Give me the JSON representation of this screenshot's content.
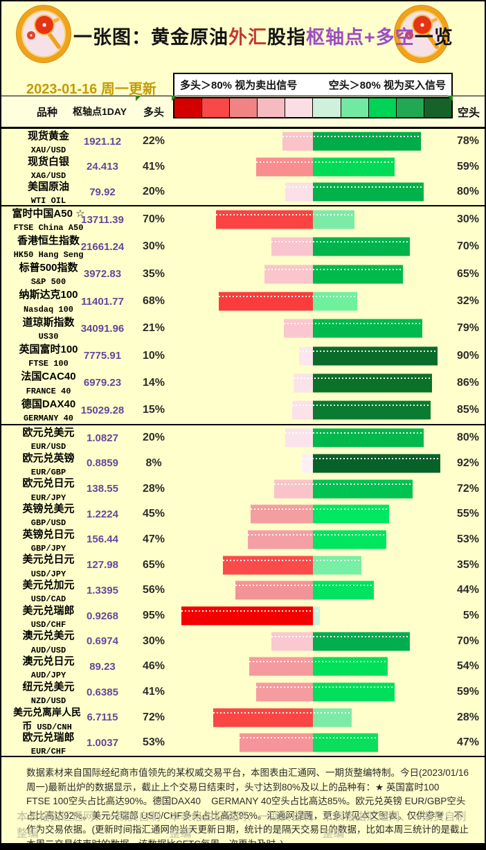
{
  "header": {
    "title_parts": [
      {
        "text": "一张图：黄金原油",
        "color": "#141414"
      },
      {
        "text": "外汇",
        "color": "#C23B30"
      },
      {
        "text": "股指",
        "color": "#141414"
      },
      {
        "text": "枢轴点+多空",
        "color": "#9C4EC4"
      },
      {
        "text": "一览",
        "color": "#141414"
      }
    ],
    "date": "2023-01-16 周一更新",
    "legend_left": "多头＞80% 视为卖出信号",
    "legend_right": "空头＞80% 视为买入信号",
    "scale_colors": [
      "#D40000",
      "#F84848",
      "#F08484",
      "#F6BBC1",
      "#FBDEE3",
      "#CFF0DB",
      "#72E9A2",
      "#00D456",
      "#21A853",
      "#156329"
    ]
  },
  "columns": {
    "name": "品种",
    "pivot": "枢轴点1DAY",
    "bull": "多头",
    "bear": "空头"
  },
  "groups": [
    {
      "id": "commodities",
      "rows": [
        {
          "name": "现货黄金",
          "code": "XAU/USD",
          "pivot": "1921.12",
          "bull": 22,
          "bear": 78,
          "bull_color": "#FAC3CA",
          "bear_color": "#00AC49"
        },
        {
          "name": "现货白银",
          "code": "XAG/USD",
          "pivot": "24.413",
          "bull": 41,
          "bear": 59,
          "bull_color": "#F98D90",
          "bear_color": "#00DC58"
        },
        {
          "name": "美国原油",
          "code": "WTI OIL",
          "pivot": "79.92",
          "bull": 20,
          "bear": 80,
          "bull_color": "#FBE0E7",
          "bear_color": "#00B249"
        }
      ]
    },
    {
      "id": "indices",
      "rows": [
        {
          "name": "富时中国A50 ☆",
          "code": "FTSE China A50",
          "pivot": "13711.39",
          "bull": 70,
          "bear": 30,
          "bull_color": "#FA4343",
          "bear_color": "#7CEBA5"
        },
        {
          "name": "香港恒生指数",
          "code": "HK50 Hang Seng",
          "pivot": "21661.24",
          "bull": 30,
          "bear": 70,
          "bull_color": "#F9C5CD",
          "bear_color": "#00B44C"
        },
        {
          "name": "标普500指数",
          "code": "S&P 500",
          "pivot": "3972.83",
          "bull": 35,
          "bear": 65,
          "bull_color": "#FAC5CB",
          "bear_color": "#00BA4B"
        },
        {
          "name": "纳斯达克100",
          "code": "Nasdaq 100",
          "pivot": "11401.77",
          "bull": 68,
          "bear": 32,
          "bull_color": "#FA3C3C",
          "bear_color": "#6FF09D"
        },
        {
          "name": "道琼斯指数",
          "code": "US30",
          "pivot": "34091.96",
          "bull": 21,
          "bear": 79,
          "bull_color": "#FBC7CF",
          "bear_color": "#00BA4D"
        },
        {
          "name": "英国富时100",
          "code": "FTSE 100",
          "pivot": "7775.91",
          "bull": 10,
          "bear": 90,
          "bull_color": "#FBE7ED",
          "bear_color": "#096C2B"
        },
        {
          "name": "法国CAC40",
          "code": "FRANCE 40",
          "pivot": "6979.23",
          "bull": 14,
          "bear": 86,
          "bull_color": "#FBE3EA",
          "bear_color": "#0B7129"
        },
        {
          "name": "德国DAX40",
          "code": "GERMANY 40",
          "pivot": "15029.28",
          "bull": 15,
          "bear": 85,
          "bull_color": "#FBE1E8",
          "bear_color": "#0A7B30"
        }
      ]
    },
    {
      "id": "forex",
      "rows": [
        {
          "name": "欧元兑美元",
          "code": "EUR/USD",
          "pivot": "1.0827",
          "bull": 20,
          "bear": 80,
          "bull_color": "#FBE3EB",
          "bear_color": "#00B84C"
        },
        {
          "name": "欧元兑英镑",
          "code": "EUR/GBP",
          "pivot": "0.8859",
          "bull": 8,
          "bear": 92,
          "bull_color": "#FDEFF4",
          "bear_color": "#07622A"
        },
        {
          "name": "欧元兑日元",
          "code": "EUR/JPY",
          "pivot": "138.55",
          "bull": 28,
          "bear": 72,
          "bull_color": "#FAC3CA",
          "bear_color": "#00C351"
        },
        {
          "name": "英镑兑美元",
          "code": "GBP/USD",
          "pivot": "1.2224",
          "bull": 45,
          "bear": 55,
          "bull_color": "#F39EA1",
          "bear_color": "#00E862"
        },
        {
          "name": "英镑兑日元",
          "code": "GBP/JPY",
          "pivot": "156.44",
          "bull": 47,
          "bear": 53,
          "bull_color": "#F49FA4",
          "bear_color": "#00E65F"
        },
        {
          "name": "美元兑日元",
          "code": "USD/JPY",
          "pivot": "127.98",
          "bull": 65,
          "bear": 35,
          "bull_color": "#FA4B4B",
          "bear_color": "#77EFA4"
        },
        {
          "name": "美元兑加元",
          "code": "USD/CAD",
          "pivot": "1.3395",
          "bull": 56,
          "bear": 44,
          "bull_color": "#F29397",
          "bear_color": "#00E361"
        },
        {
          "name": "美元兑瑞郎",
          "code": "USD/CHF",
          "pivot": "0.9268",
          "bull": 95,
          "bear": 5,
          "bull_color": "#F50000",
          "bear_color": "#C9F2DC"
        },
        {
          "name": "澳元兑美元",
          "code": "AUD/USD",
          "pivot": "0.6974",
          "bull": 30,
          "bear": 70,
          "bull_color": "#FAC8D0",
          "bear_color": "#00AE4E"
        },
        {
          "name": "澳元兑日元",
          "code": "AUD/JPY",
          "pivot": "89.23",
          "bull": 46,
          "bear": 54,
          "bull_color": "#F59B9F",
          "bear_color": "#00E058"
        },
        {
          "name": "纽元兑美元",
          "code": "NZD/USD",
          "pivot": "0.6385",
          "bull": 41,
          "bear": 59,
          "bull_color": "#F59CA0",
          "bear_color": "#00DF5B"
        },
        {
          "name": "美元兑离岸人民币",
          "code": "USD/CNH",
          "pivot": "6.7115",
          "bull": 72,
          "bear": 28,
          "bull_color": "#FA4545",
          "bear_color": "#7CEBA6",
          "wrap": true
        },
        {
          "name": "欧元兑瑞郎",
          "code": "EUR/CHF",
          "pivot": "1.0037",
          "bull": 53,
          "bear": 47,
          "bull_color": "#F59599",
          "bear_color": "#0ADF5D"
        }
      ]
    }
  ],
  "footer": {
    "note": "数据素材来自国际经纪商市值领先的某权威交易平台，本图表由汇通网、一期货整编特制。今日(2023/01/16周一)最新出炉的数据显示，截止上个交易日结束时，头寸达到80%及以上的品种有：★ 英国富时100    FTSE 100空头占比高达90%。德国DAX40    GERMANY 40空头占比高达85%。欧元兑英镑 EUR/GBP空头占比高达92%。美元兑瑞郎 USD/CHF多头占比高达95%。汇通网提醒，更多详见本文图表。仅供参考，不作为交易依据。(更新时间指汇通网的当天更新日期，统计的是隔天交易日的数据，比如本周三统计的是截止本周二交易结束时的数据。该数据比CFTC每周一次更为及时。)",
    "watermark": "本表格由汇通网、一期货自制整编"
  },
  "chart_data": {
    "type": "bar",
    "orientation": "horizontal-diverging",
    "title": "一张图：黄金原油外汇股指枢轴点+多空一览",
    "date": "2023-01-16 周一更新",
    "legend": [
      "多头 (red, left)",
      "空头 (green, right)"
    ],
    "annotations": [
      "多头＞80% 视为卖出信号",
      "空头＞80% 视为买入信号"
    ],
    "categories": [
      "XAU/USD",
      "XAG/USD",
      "WTI OIL",
      "FTSE China A50",
      "HK50 Hang Seng",
      "S&P 500",
      "Nasdaq 100",
      "US30",
      "FTSE 100",
      "FRANCE 40",
      "GERMANY 40",
      "EUR/USD",
      "EUR/GBP",
      "EUR/JPY",
      "GBP/USD",
      "GBP/JPY",
      "USD/JPY",
      "USD/CAD",
      "USD/CHF",
      "AUD/USD",
      "AUD/JPY",
      "NZD/USD",
      "USD/CNH",
      "EUR/CHF"
    ],
    "series": [
      {
        "name": "多头%",
        "values": [
          22,
          41,
          20,
          70,
          30,
          35,
          68,
          21,
          10,
          14,
          15,
          20,
          8,
          28,
          45,
          47,
          65,
          56,
          95,
          30,
          46,
          41,
          72,
          53
        ]
      },
      {
        "name": "空头%",
        "values": [
          78,
          59,
          80,
          30,
          70,
          65,
          32,
          79,
          90,
          86,
          85,
          80,
          92,
          72,
          55,
          53,
          35,
          44,
          5,
          70,
          54,
          59,
          28,
          47
        ]
      }
    ],
    "pivot_1day": [
      1921.12,
      24.413,
      79.92,
      13711.39,
      21661.24,
      3972.83,
      11401.77,
      34091.96,
      7775.91,
      6979.23,
      15029.28,
      1.0827,
      0.8859,
      138.55,
      1.2224,
      156.44,
      127.98,
      1.3395,
      0.9268,
      0.6974,
      89.23,
      0.6385,
      6.7115,
      1.0037
    ],
    "xlim": [
      -100,
      100
    ],
    "grid": false,
    "colorscale_red_to_green": [
      "#D40000",
      "#F84848",
      "#F08484",
      "#F6BBC1",
      "#FBDEE3",
      "#CFF0DB",
      "#72E9A2",
      "#00D456",
      "#21A853",
      "#156329"
    ]
  }
}
